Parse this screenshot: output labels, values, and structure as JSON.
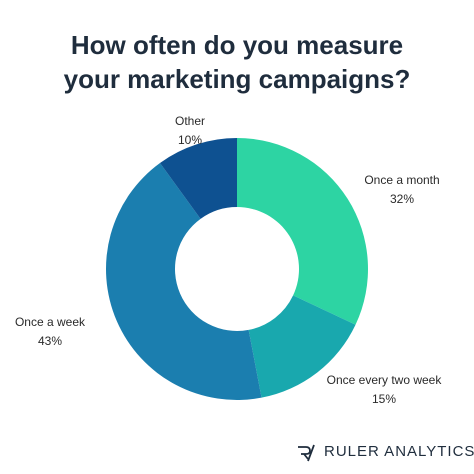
{
  "chart_data": {
    "type": "donut",
    "title": "How often do you measure your marketing campaigns?",
    "categories": [
      "Once a month",
      "Once every two week",
      "Once a week",
      "Other"
    ],
    "values": [
      32,
      15,
      43,
      10
    ],
    "value_labels": [
      "32%",
      "15%",
      "43%",
      "10%"
    ],
    "colors": [
      "#2dd4a3",
      "#19a8ae",
      "#1b7eaf",
      "#0e5191"
    ],
    "footer": "RULER ANALYTICS"
  }
}
